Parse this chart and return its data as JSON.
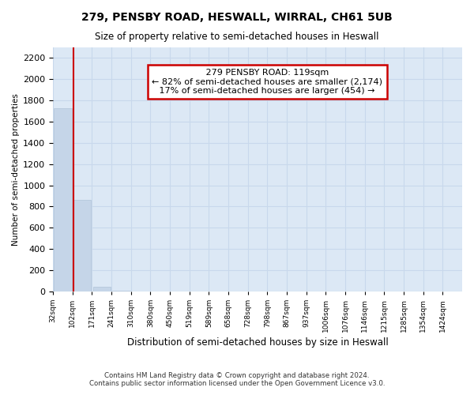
{
  "title": "279, PENSBY ROAD, HESWALL, WIRRAL, CH61 5UB",
  "subtitle": "Size of property relative to semi-detached houses in Heswall",
  "xlabel": "Distribution of semi-detached houses by size in Heswall",
  "ylabel": "Number of semi-detached properties",
  "footer_line1": "Contains HM Land Registry data © Crown copyright and database right 2024.",
  "footer_line2": "Contains public sector information licensed under the Open Government Licence v3.0.",
  "annotation_line1": "279 PENSBY ROAD: 119sqm",
  "annotation_line2": "← 82% of semi-detached houses are smaller (2,174)",
  "annotation_line3": "17% of semi-detached houses are larger (454) →",
  "property_size_bin": 1,
  "bar_labels": [
    "32sqm",
    "102sqm",
    "171sqm",
    "241sqm",
    "310sqm",
    "380sqm",
    "450sqm",
    "519sqm",
    "589sqm",
    "658sqm",
    "728sqm",
    "798sqm",
    "867sqm",
    "937sqm",
    "1006sqm",
    "1076sqm",
    "1146sqm",
    "1215sqm",
    "1285sqm",
    "1354sqm",
    "1424sqm"
  ],
  "bar_heights": [
    1730,
    865,
    45,
    5,
    2,
    1,
    1,
    0,
    0,
    0,
    0,
    0,
    0,
    0,
    0,
    0,
    0,
    0,
    0,
    0,
    0
  ],
  "bar_color": "#c5d5e8",
  "bar_edge_color": "#b0c4d8",
  "marker_color": "#cc0000",
  "ylim": [
    0,
    2300
  ],
  "yticks": [
    0,
    200,
    400,
    600,
    800,
    1000,
    1200,
    1400,
    1600,
    1800,
    2000,
    2200
  ],
  "annotation_box_facecolor": "#ffffff",
  "annotation_box_edgecolor": "#cc0000",
  "grid_color": "#c8d8ec",
  "plot_bg_color": "#dce8f5",
  "fig_bg_color": "#ffffff"
}
